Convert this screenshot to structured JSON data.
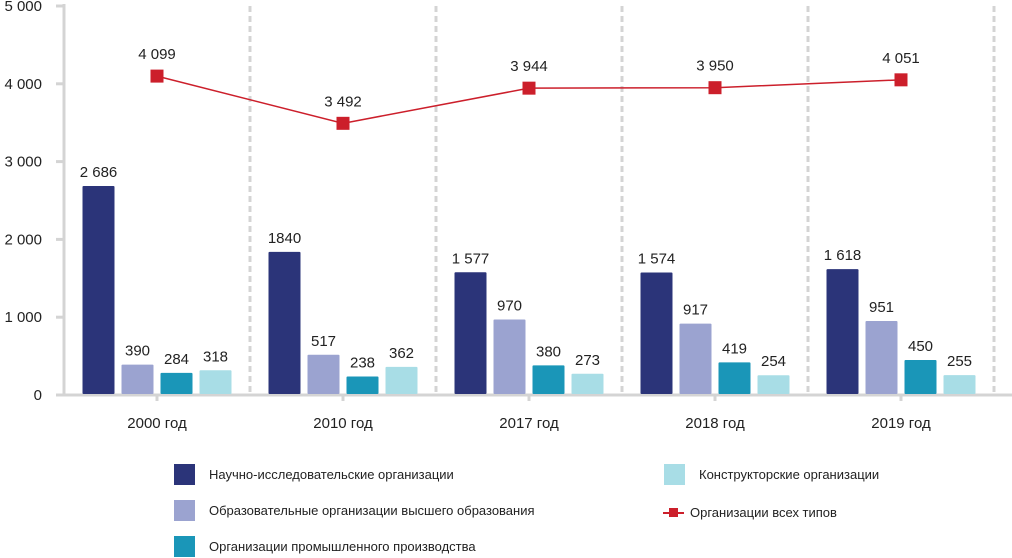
{
  "chart_data": {
    "type": "bar",
    "title": "",
    "xlabel": "",
    "ylabel": "",
    "ylim": [
      0,
      5000
    ],
    "yticks": [
      0,
      1000,
      2000,
      3000,
      4000,
      5000
    ],
    "ytick_labels": [
      "0",
      "1 000",
      "2 000",
      "3 000",
      "4 000",
      "5 000"
    ],
    "categories": [
      "2000 год",
      "2010 год",
      "2017 год",
      "2018 год",
      "2019 год"
    ],
    "series": [
      {
        "name": "Научно-исследовательские организации",
        "type": "bar",
        "color": "#2b3479",
        "values": [
          2686,
          1840,
          1577,
          1574,
          1618
        ],
        "labels": [
          "2 686",
          "1840",
          "1 577",
          "1 574",
          "1 618"
        ]
      },
      {
        "name": "Образовательные организации высшего образования",
        "type": "bar",
        "color": "#9ba3d0",
        "values": [
          390,
          517,
          970,
          917,
          951
        ],
        "labels": [
          "390",
          "517",
          "970",
          "917",
          "951"
        ]
      },
      {
        "name": "Организации промышленного производства",
        "type": "bar",
        "color": "#1a96b8",
        "values": [
          284,
          238,
          380,
          419,
          450
        ],
        "labels": [
          "284",
          "238",
          "380",
          "419",
          "450"
        ]
      },
      {
        "name": "Конструкторские организации",
        "type": "bar",
        "color": "#a8dde6",
        "values": [
          318,
          362,
          273,
          254,
          255
        ],
        "labels": [
          "318",
          "362",
          "273",
          "254",
          "255"
        ]
      },
      {
        "name": "Организации всех типов",
        "type": "line",
        "color": "#cc1f2b",
        "values": [
          4099,
          3492,
          3944,
          3950,
          4051
        ],
        "labels": [
          "4 099",
          "3 492",
          "3 944",
          "3 950",
          "4 051"
        ]
      }
    ],
    "grid": false,
    "legend_position": "bottom"
  },
  "legend": {
    "items": [
      {
        "label": "Научно-исследовательские организации",
        "color": "#2b3479",
        "kind": "box"
      },
      {
        "label": "Конструкторские организации",
        "color": "#a8dde6",
        "kind": "box"
      },
      {
        "label": "Образовательные организации высшего образования",
        "color": "#9ba3d0",
        "kind": "box"
      },
      {
        "label": "Организации всех типов",
        "color": "#cc1f2b",
        "kind": "line-marker"
      },
      {
        "label": "Организации промышленного производства",
        "color": "#1a96b8",
        "kind": "box"
      }
    ]
  }
}
